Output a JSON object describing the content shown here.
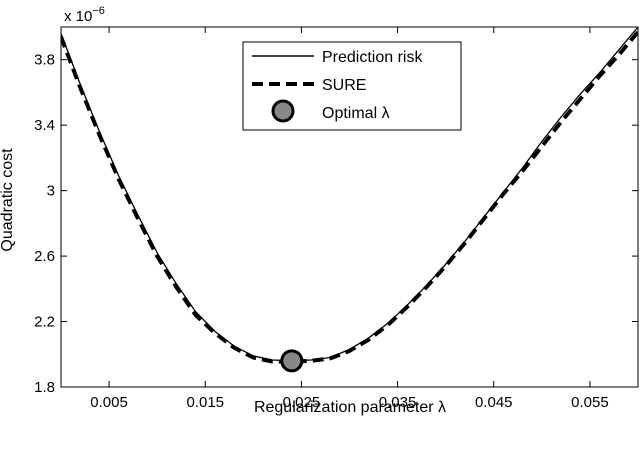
{
  "chart_data": {
    "type": "line",
    "xlabel": "Regularization parameter λ",
    "ylabel": "Quadratic cost",
    "y_exponent_label": "x 10",
    "y_exponent_power": "−6",
    "xlim": [
      0,
      0.06
    ],
    "ylim": [
      1.8,
      4.0
    ],
    "x_ticks": [
      0.005,
      0.015,
      0.025,
      0.035,
      0.045,
      0.055
    ],
    "x_tick_labels": [
      "0.005",
      "0.015",
      "0.025",
      "0.035",
      "0.045",
      "0.055"
    ],
    "y_ticks": [
      1.8,
      2.2,
      2.6,
      3.0,
      3.4,
      3.8
    ],
    "y_tick_labels": [
      "1.8",
      "2.2",
      "2.6",
      "3",
      "3.4",
      "3.8"
    ],
    "legend_position": "top-center",
    "series": [
      {
        "name": "Prediction risk",
        "style": "solid",
        "x": [
          0,
          0.002,
          0.004,
          0.006,
          0.008,
          0.01,
          0.012,
          0.014,
          0.016,
          0.018,
          0.02,
          0.022,
          0.024,
          0.026,
          0.028,
          0.03,
          0.032,
          0.034,
          0.036,
          0.038,
          0.04,
          0.042,
          0.044,
          0.046,
          0.048,
          0.05,
          0.052,
          0.054,
          0.056,
          0.058,
          0.06
        ],
        "values": [
          3.96,
          3.65,
          3.36,
          3.09,
          2.85,
          2.62,
          2.43,
          2.26,
          2.14,
          2.05,
          1.99,
          1.965,
          1.96,
          1.965,
          1.98,
          2.03,
          2.1,
          2.19,
          2.3,
          2.42,
          2.55,
          2.69,
          2.84,
          2.99,
          3.14,
          3.3,
          3.45,
          3.59,
          3.72,
          3.86,
          4.0
        ]
      },
      {
        "name": "SURE",
        "style": "dashed",
        "x": [
          0,
          0.002,
          0.004,
          0.006,
          0.008,
          0.01,
          0.012,
          0.014,
          0.016,
          0.018,
          0.02,
          0.022,
          0.024,
          0.026,
          0.028,
          0.03,
          0.032,
          0.034,
          0.036,
          0.038,
          0.04,
          0.042,
          0.044,
          0.046,
          0.048,
          0.05,
          0.052,
          0.054,
          0.056,
          0.058,
          0.06
        ],
        "values": [
          3.94,
          3.63,
          3.34,
          3.07,
          2.83,
          2.6,
          2.41,
          2.24,
          2.13,
          2.04,
          1.98,
          1.955,
          1.955,
          1.96,
          1.975,
          2.02,
          2.09,
          2.18,
          2.29,
          2.41,
          2.54,
          2.68,
          2.83,
          2.98,
          3.12,
          3.27,
          3.42,
          3.56,
          3.7,
          3.83,
          3.97
        ]
      }
    ],
    "marker": {
      "name": "Optimal λ",
      "x": 0.024,
      "y": 1.96,
      "fill": "#888888"
    },
    "colors": {
      "line": "#000000",
      "background": "#ffffff"
    }
  }
}
